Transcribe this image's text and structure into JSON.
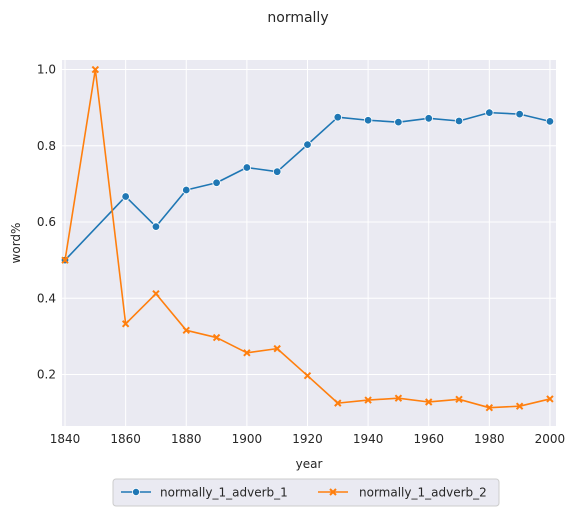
{
  "chart_data": {
    "type": "line",
    "title": "normally",
    "xlabel": "year",
    "ylabel": "word%",
    "xlim": [
      1839,
      2002
    ],
    "ylim": [
      0.065,
      1.025
    ],
    "xticks": [
      1840,
      1860,
      1880,
      1900,
      1920,
      1940,
      1960,
      1980,
      2000
    ],
    "yticks": [
      0.2,
      0.4,
      0.6,
      0.8,
      1.0
    ],
    "ytick_labels": [
      "0.2",
      "0.4",
      "0.6",
      "0.8",
      "1.0"
    ],
    "grid": true,
    "legend_position": "bottom-center",
    "x": [
      1840,
      1850,
      1860,
      1870,
      1880,
      1890,
      1900,
      1910,
      1920,
      1930,
      1940,
      1950,
      1960,
      1970,
      1980,
      1990,
      2000
    ],
    "series": [
      {
        "name": "normally_1_adverb_1",
        "color": "#1f77b4",
        "marker": "circle",
        "values": [
          0.5,
          null,
          0.667,
          0.588,
          0.684,
          0.703,
          0.743,
          0.732,
          0.803,
          0.875,
          0.867,
          0.862,
          0.872,
          0.865,
          0.887,
          0.883,
          0.864
        ]
      },
      {
        "name": "normally_1_adverb_2",
        "color": "#ff7f0e",
        "marker": "x",
        "values": [
          0.5,
          1.0,
          0.333,
          0.412,
          0.316,
          0.297,
          0.257,
          0.268,
          0.197,
          0.125,
          0.133,
          0.138,
          0.128,
          0.135,
          0.113,
          0.117,
          0.136
        ]
      }
    ]
  }
}
